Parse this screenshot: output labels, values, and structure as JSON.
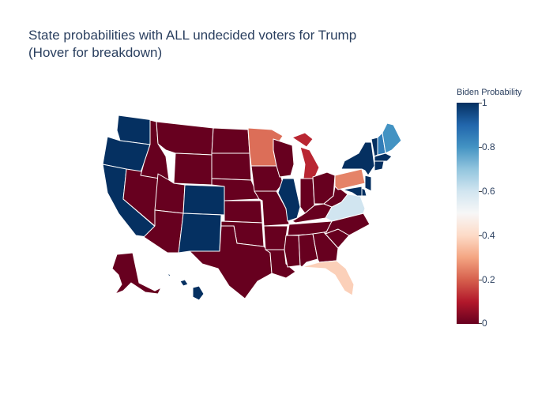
{
  "title": {
    "line1": "State probabilities with ALL undecided voters for Trump",
    "line2": "(Hover for breakdown)"
  },
  "colorbar": {
    "title": "Biden Probability",
    "ticks": [
      "1",
      "0.8",
      "0.6",
      "0.4",
      "0.2",
      "0"
    ]
  },
  "colors": {
    "prob_0": "#67001f",
    "prob_0_1": "#b2182b",
    "prob_0_2": "#d6604d",
    "prob_0_3": "#f4a582",
    "prob_0_4": "#fddbc7",
    "prob_0_5": "#f7f7f7",
    "prob_0_6": "#d1e5f0",
    "prob_0_8": "#4393c3",
    "prob_1": "#053061"
  },
  "states": {
    "WA": 1,
    "OR": 1,
    "CA": 1,
    "NV": 0,
    "ID": 0,
    "MT": 0,
    "WY": 0,
    "UT": 0,
    "AZ": 0,
    "CO": 1,
    "NM": 1,
    "ND": 0,
    "SD": 0,
    "NE": 0,
    "KS": 0,
    "OK": 0,
    "TX": 0,
    "MN": 0.22,
    "IA": 0,
    "MO": 0,
    "AR": 0,
    "LA": 0,
    "WI": 0,
    "IL": 1,
    "MI": 0.12,
    "IN": 0,
    "OH": 0,
    "KY": 0,
    "TN": 0,
    "MS": 0,
    "AL": 0,
    "GA": 0,
    "FL": 0.38,
    "SC": 0,
    "NC": 0,
    "VA": 0.6,
    "WV": 0,
    "PA": 0.25,
    "NY": 1,
    "VT": 1,
    "NH": 0.85,
    "ME": 0.8,
    "MA": 1,
    "CT": 1,
    "NJ": 1,
    "DE": 1,
    "MD": 1,
    "AK": 0,
    "HI": 1
  }
}
